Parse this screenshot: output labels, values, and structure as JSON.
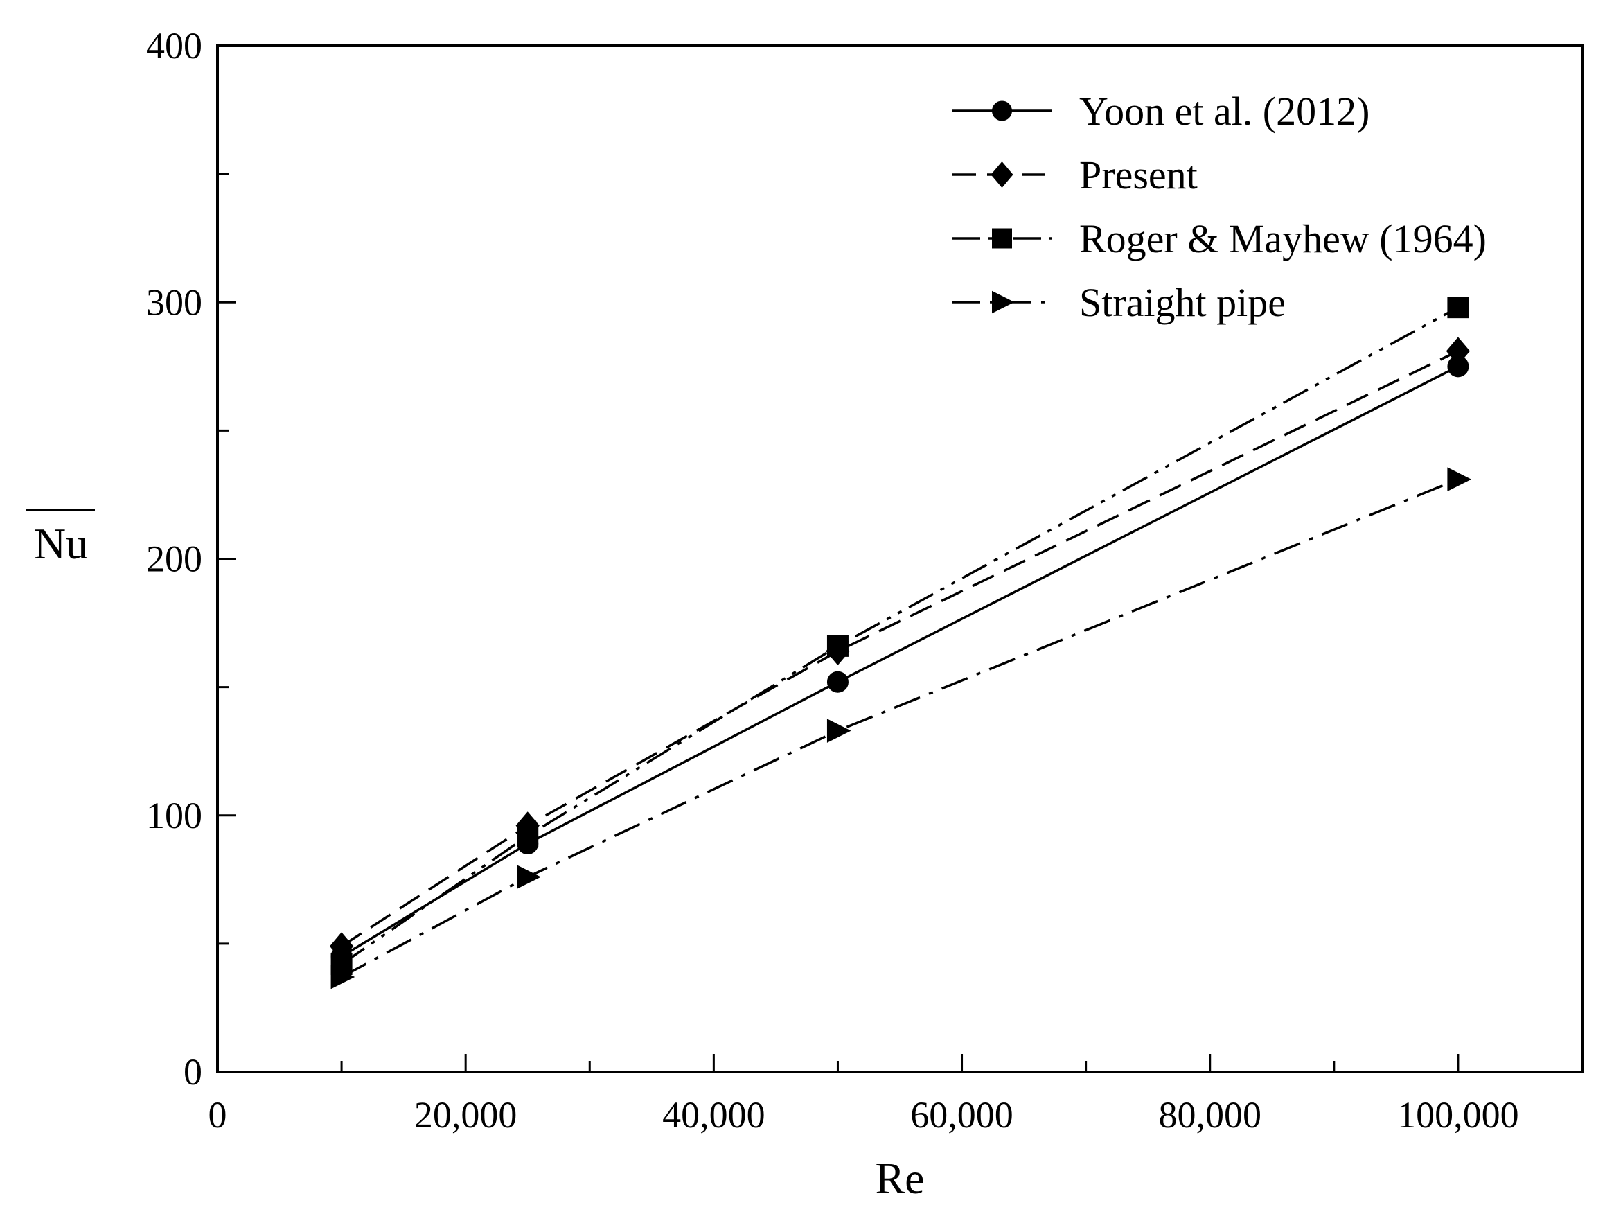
{
  "chart_data": {
    "type": "line",
    "title": "",
    "xlabel": "Re",
    "ylabel": "Nu",
    "ylabel_overline": true,
    "xlim": [
      0,
      110000
    ],
    "ylim": [
      0,
      400
    ],
    "x_ticks": [
      0,
      20000,
      40000,
      60000,
      80000,
      100000
    ],
    "x_tick_labels": [
      "0",
      "20,000",
      "40,000",
      "60,000",
      "80,000",
      "100,000"
    ],
    "x_minor_ticks": [
      10000,
      30000,
      50000,
      70000,
      90000
    ],
    "y_ticks": [
      0,
      100,
      200,
      300,
      400
    ],
    "y_tick_labels": [
      "0",
      "100",
      "200",
      "300",
      "400"
    ],
    "y_minor_ticks": [
      50,
      150,
      250,
      350
    ],
    "grid": false,
    "legend_position": "top-right",
    "series": [
      {
        "name": "Yoon et al. (2012)",
        "marker": "circle",
        "dash": "solid",
        "x": [
          10000,
          25000,
          50000,
          100000
        ],
        "values": [
          45,
          89,
          152,
          275
        ]
      },
      {
        "name": "Present",
        "marker": "diamond",
        "dash": "dashed",
        "x": [
          10000,
          25000,
          50000,
          100000
        ],
        "values": [
          49,
          96,
          164,
          281
        ]
      },
      {
        "name": "Roger & Mayhew (1964)",
        "marker": "square",
        "dash": "dash-dot-dot",
        "x": [
          10000,
          25000,
          50000,
          100000
        ],
        "values": [
          42,
          92,
          166,
          298
        ]
      },
      {
        "name": "Straight pipe",
        "marker": "triangle-right",
        "dash": "dash-dot",
        "x": [
          10000,
          25000,
          50000,
          100000
        ],
        "values": [
          37,
          76,
          133,
          231
        ]
      }
    ]
  }
}
